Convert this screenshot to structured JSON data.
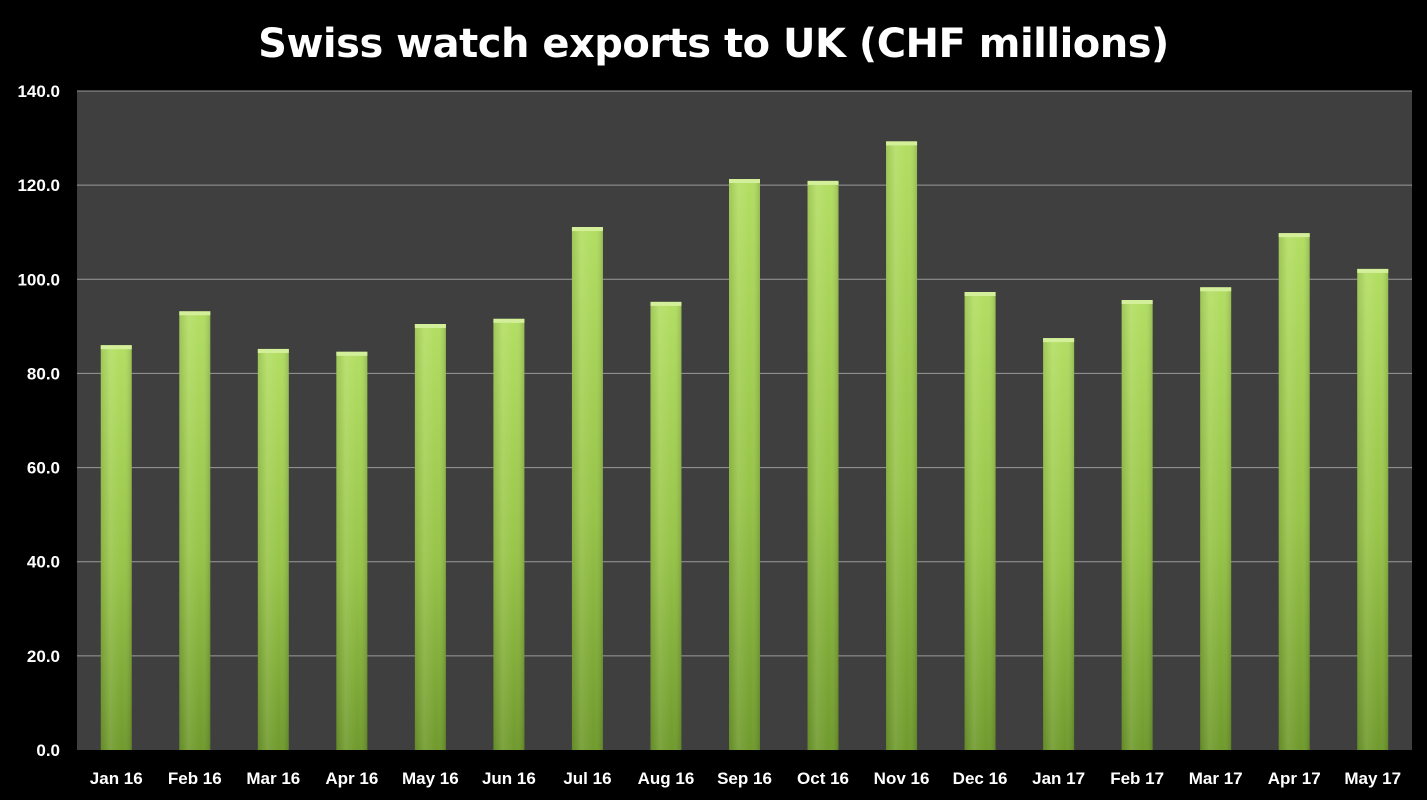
{
  "chart_data": {
    "type": "bar",
    "title": "Swiss watch exports to UK (CHF millions)",
    "xlabel": "",
    "ylabel": "",
    "categories": [
      "Jan 16",
      "Feb 16",
      "Mar 16",
      "Apr 16",
      "May 16",
      "Jun 16",
      "Jul 16",
      "Aug 16",
      "Sep 16",
      "Oct 16",
      "Nov 16",
      "Dec 16",
      "Jan 17",
      "Feb 17",
      "Mar 17",
      "Apr 17",
      "May 17"
    ],
    "values": [
      86.0,
      93.2,
      85.2,
      84.6,
      90.5,
      91.6,
      111.1,
      95.2,
      121.3,
      120.9,
      129.3,
      97.3,
      87.5,
      95.6,
      98.3,
      109.8,
      102.2
    ],
    "ylim": [
      0,
      140
    ],
    "yticks": [
      0,
      20,
      40,
      60,
      80,
      100,
      120,
      140
    ],
    "ytick_labels": [
      "0.0",
      "20.0",
      "40.0",
      "60.0",
      "80.0",
      "100.0",
      "120.0",
      "140.0"
    ],
    "grid": true,
    "legend": "none",
    "colors": {
      "background": "#000000",
      "plot_area": "#3f3f3f",
      "gridline": "#9a9a9a",
      "bar_light": "#aad65a",
      "bar_dark": "#6f9a2c",
      "text": "#ffffff"
    }
  }
}
